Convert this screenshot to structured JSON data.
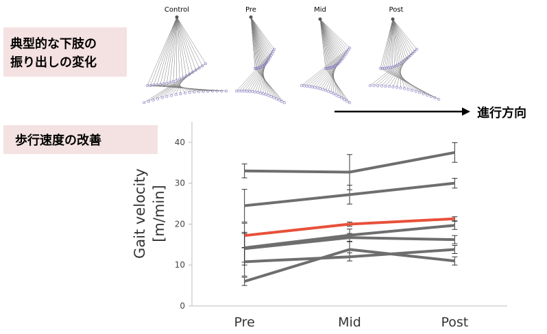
{
  "figure_caption": [
    "典型的な下肢の",
    "振り出しの変化"
  ],
  "panels": [
    "Control",
    "Pre",
    "Mid",
    "Post"
  ],
  "direction": "進行方向",
  "chart_data": {
    "type": "line",
    "title": "歩行速度の改善",
    "ylabel": [
      "Gait velocity",
      "[m/min]"
    ],
    "categories": [
      "Pre",
      "Mid",
      "Post"
    ],
    "ylim": [
      0,
      45
    ],
    "yticks": [
      0,
      10,
      20,
      30,
      40
    ],
    "series": [
      {
        "color": "#6e6e6e",
        "values": [
          33,
          32.7,
          37.5
        ],
        "errors": [
          1.7,
          4.3,
          2.4
        ]
      },
      {
        "color": "#6e6e6e",
        "values": [
          24.5,
          27.2,
          30
        ],
        "errors": [
          4,
          2.3,
          1.2
        ]
      },
      {
        "color": "#6e6e6e",
        "values": [
          14.2,
          17.3,
          19.7
        ],
        "errors": [
          3.5,
          1.5,
          1
        ]
      },
      {
        "color": "#6e6e6e",
        "values": [
          14,
          16.7,
          16.2
        ],
        "errors": [
          4,
          1,
          1
        ]
      },
      {
        "color": "#6e6e6e",
        "values": [
          10.8,
          12,
          13.8
        ],
        "errors": [
          3.5,
          1,
          1
        ]
      },
      {
        "color": "#6e6e6e",
        "values": [
          6,
          13.8,
          11
        ],
        "errors": [
          1,
          2,
          1
        ]
      },
      {
        "color": "#e8503a",
        "values": [
          17.2,
          20,
          21.3
        ],
        "errors": [
          3,
          0.5,
          0.5
        ]
      }
    ]
  }
}
